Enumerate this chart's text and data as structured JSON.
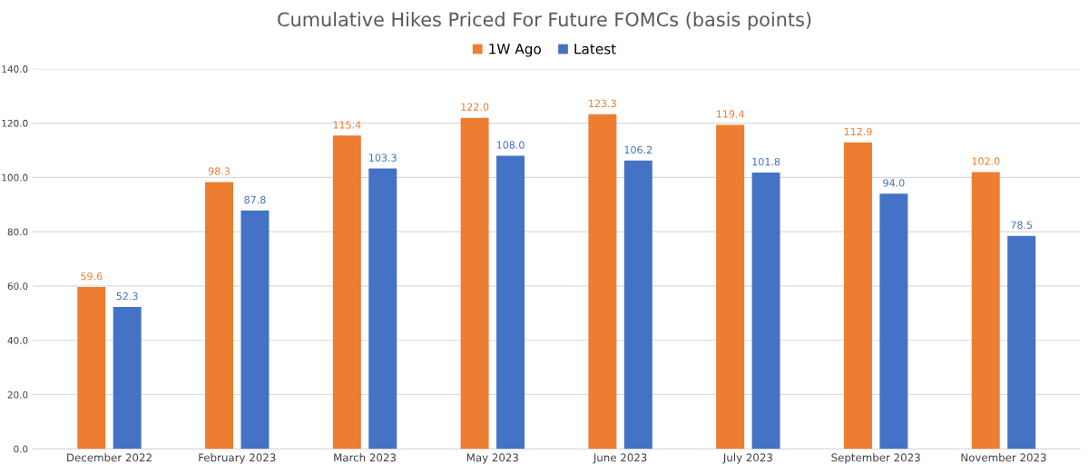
{
  "chart_data": {
    "type": "bar",
    "title": "Cumulative Hikes Priced For Future FOMCs (basis points)",
    "categories": [
      "December 2022",
      "February 2023",
      "March 2023",
      "May 2023",
      "June 2023",
      "July 2023",
      "September 2023",
      "November 2023"
    ],
    "series": [
      {
        "name": "1W Ago",
        "color": "#ed7d31",
        "values": [
          59.6,
          98.3,
          115.4,
          122.0,
          123.3,
          119.4,
          112.9,
          102.0
        ],
        "value_labels": [
          "59.6",
          "98.3",
          "115.4",
          "122.0",
          "123.3",
          "119.4",
          "112.9",
          "102.0"
        ]
      },
      {
        "name": "Latest",
        "color": "#4472c4",
        "values": [
          52.3,
          87.8,
          103.3,
          108.0,
          106.2,
          101.8,
          94.0,
          78.5
        ],
        "value_labels": [
          "52.3",
          "87.8",
          "103.3",
          "108.0",
          "106.2",
          "101.8",
          "94.0",
          "78.5"
        ]
      }
    ],
    "ylim": [
      0,
      140
    ],
    "yticks": [
      {
        "value": 0,
        "label": "0.0"
      },
      {
        "value": 20,
        "label": "20.0"
      },
      {
        "value": 40,
        "label": "40.0"
      },
      {
        "value": 60,
        "label": "60.0"
      },
      {
        "value": 80,
        "label": "80.0"
      },
      {
        "value": 100,
        "label": "100.0"
      },
      {
        "value": 120,
        "label": "120.0"
      },
      {
        "value": 140,
        "label": "140.0"
      }
    ],
    "grid": "y",
    "legend": "top"
  }
}
